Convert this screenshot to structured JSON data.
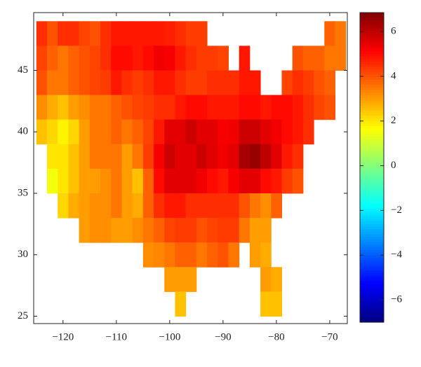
{
  "chart_data": {
    "type": "heatmap",
    "colormap": "jet",
    "x": [
      -124,
      -122,
      -120,
      -118,
      -116,
      -114,
      -112,
      -110,
      -108,
      -106,
      -104,
      -102,
      -100,
      -98,
      -96,
      -94,
      -92,
      -90,
      -88,
      -86,
      -84,
      -82,
      -80,
      -78,
      -76,
      -74,
      -72,
      -70,
      -68
    ],
    "y": [
      48,
      46,
      44,
      42,
      40,
      38,
      36,
      34,
      32,
      30,
      28,
      26
    ],
    "z": [
      [
        4.5,
        4.0,
        4.5,
        4.5,
        4.2,
        4.0,
        4.5,
        4.8,
        4.8,
        4.8,
        4.8,
        4.8,
        4.7,
        4.5,
        4.3,
        4.3,
        null,
        null,
        null,
        null,
        null,
        null,
        null,
        null,
        null,
        null,
        null,
        3.8,
        3.5
      ],
      [
        4.2,
        3.8,
        3.5,
        3.8,
        4.0,
        4.2,
        4.5,
        5.0,
        5.0,
        4.8,
        5.0,
        5.3,
        5.2,
        4.8,
        4.5,
        4.3,
        4.3,
        4.2,
        null,
        4.8,
        null,
        null,
        null,
        null,
        4.0,
        3.8,
        3.8,
        3.5,
        3.5
      ],
      [
        4.0,
        3.5,
        3.5,
        3.8,
        4.0,
        4.2,
        4.3,
        4.8,
        4.5,
        4.3,
        4.5,
        4.8,
        4.8,
        4.5,
        4.3,
        4.3,
        4.5,
        4.5,
        4.5,
        4.8,
        4.8,
        null,
        null,
        4.2,
        4.5,
        4.3,
        4.0,
        3.8,
        null
      ],
      [
        3.2,
        2.8,
        2.5,
        3.0,
        3.2,
        3.5,
        3.5,
        3.8,
        4.0,
        4.2,
        4.3,
        4.5,
        4.5,
        4.8,
        5.0,
        5.0,
        4.8,
        4.8,
        4.8,
        5.0,
        5.0,
        4.8,
        5.0,
        5.0,
        4.8,
        4.5,
        4.2,
        4.0,
        null
      ],
      [
        2.5,
        2.2,
        1.8,
        2.2,
        3.0,
        3.5,
        3.5,
        3.8,
        3.5,
        3.8,
        4.2,
        4.8,
        5.5,
        5.5,
        5.8,
        5.5,
        5.5,
        5.2,
        5.3,
        5.8,
        5.8,
        5.5,
        5.3,
        5.0,
        4.8,
        4.5,
        null,
        null,
        null
      ],
      [
        null,
        2.0,
        2.0,
        2.5,
        3.0,
        3.5,
        3.5,
        3.5,
        3.0,
        3.5,
        4.3,
        5.2,
        5.8,
        5.5,
        5.5,
        5.8,
        5.5,
        5.3,
        5.5,
        6.3,
        6.5,
        6.0,
        5.5,
        4.8,
        4.5,
        null,
        null,
        null,
        null
      ],
      [
        null,
        1.5,
        2.0,
        2.5,
        3.0,
        3.0,
        3.2,
        3.5,
        3.0,
        2.5,
        3.8,
        5.0,
        5.5,
        5.5,
        5.5,
        5.3,
        5.0,
        4.8,
        5.2,
        5.5,
        5.5,
        5.0,
        4.8,
        4.3,
        4.0,
        null,
        null,
        null,
        null
      ],
      [
        null,
        null,
        2.2,
        2.8,
        3.0,
        3.2,
        3.2,
        3.5,
        3.0,
        2.8,
        3.8,
        4.5,
        4.8,
        4.8,
        4.5,
        4.5,
        4.5,
        4.5,
        4.5,
        4.0,
        3.5,
        3.2,
        3.8,
        null,
        null,
        null,
        null,
        null,
        null
      ],
      [
        null,
        null,
        null,
        null,
        3.0,
        3.2,
        3.2,
        3.0,
        3.0,
        3.2,
        3.5,
        3.8,
        4.2,
        4.3,
        4.3,
        4.0,
        4.2,
        4.3,
        4.3,
        3.5,
        3.0,
        3.0,
        null,
        null,
        null,
        null,
        null,
        null,
        null
      ],
      [
        null,
        null,
        null,
        null,
        null,
        null,
        null,
        null,
        null,
        null,
        3.2,
        3.3,
        3.5,
        3.8,
        3.8,
        3.5,
        3.8,
        4.0,
        3.5,
        null,
        3.0,
        2.8,
        null,
        null,
        null,
        null,
        null,
        null,
        null
      ],
      [
        null,
        null,
        null,
        null,
        null,
        null,
        null,
        null,
        null,
        null,
        null,
        null,
        3.0,
        3.0,
        3.0,
        null,
        null,
        null,
        null,
        null,
        null,
        3.0,
        2.8,
        null,
        null,
        null,
        null,
        null,
        null
      ],
      [
        null,
        null,
        null,
        null,
        null,
        null,
        null,
        null,
        null,
        null,
        null,
        null,
        null,
        2.5,
        null,
        null,
        null,
        null,
        null,
        null,
        null,
        2.5,
        2.5,
        null,
        null,
        null,
        null,
        null,
        null
      ]
    ],
    "xlim": [
      -125.5,
      -66.7
    ],
    "ylim": [
      24.4,
      49.7
    ],
    "xticks": [
      {
        "value": -120,
        "label": "−120"
      },
      {
        "value": -110,
        "label": "−110"
      },
      {
        "value": -100,
        "label": "−100"
      },
      {
        "value": -90,
        "label": "−90"
      },
      {
        "value": -80,
        "label": "−80"
      },
      {
        "value": -70,
        "label": "−70"
      }
    ],
    "yticks": [
      25,
      30,
      35,
      40,
      45
    ],
    "colorbar": {
      "lim": [
        -7,
        6.85
      ],
      "ticks": [
        {
          "value": -6,
          "label": "−6"
        },
        {
          "value": -4,
          "label": "−4"
        },
        {
          "value": -2,
          "label": "−2"
        },
        0,
        2,
        4,
        6
      ]
    }
  }
}
